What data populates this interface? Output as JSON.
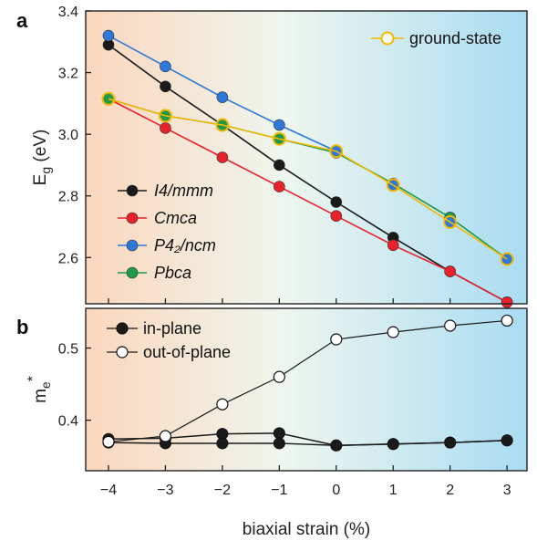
{
  "chart_data": [
    {
      "panel": "a",
      "type": "line",
      "ylabel_main": "E",
      "ylabel_sub": "g",
      "ylabel_unit": " (eV)",
      "ylim": [
        2.45,
        3.4
      ],
      "yticks": [
        2.6,
        2.8,
        3.0,
        3.2,
        3.4
      ],
      "ytick_labels": [
        "2.6",
        "2.8",
        "3.0",
        "3.2",
        "3.4"
      ],
      "x": [
        -4,
        -3,
        -2,
        -1,
        0,
        1,
        2,
        3
      ],
      "series": [
        {
          "name": "I4/mmm",
          "color": "#1a1a1a",
          "values": [
            3.29,
            3.155,
            3.03,
            2.9,
            2.78,
            2.665,
            2.555,
            2.455
          ]
        },
        {
          "name": "Cmca",
          "color": "#e8212b",
          "values": [
            3.115,
            3.02,
            2.925,
            2.83,
            2.735,
            2.64,
            2.555,
            2.455
          ]
        },
        {
          "name": "P4₂/ncm",
          "color": "#2e78d9",
          "values": [
            3.32,
            3.22,
            3.12,
            3.03,
            2.945,
            null,
            null,
            null
          ]
        },
        {
          "name": "Pbca",
          "color": "#1e9a4a",
          "values": [
            3.115,
            3.06,
            3.03,
            2.985,
            2.94,
            2.84,
            2.73,
            2.595
          ]
        },
        {
          "name": "ground-state",
          "color": "#f5b800",
          "values": [
            3.115,
            3.06,
            3.03,
            2.985,
            2.945,
            2.835,
            2.715,
            2.595
          ]
        }
      ],
      "extra_points": [
        {
          "series": "P4₂/ncm",
          "x": [
            1,
            2,
            3
          ],
          "values": [
            2.835,
            2.715,
            2.595
          ]
        }
      ],
      "legend": {
        "upper_right": [
          "ground-state"
        ],
        "lower_left": [
          "I4/mmm",
          "Cmca",
          "P4₂/ncm",
          "Pbca"
        ]
      }
    },
    {
      "panel": "b",
      "type": "line",
      "ylabel_main": "m",
      "ylabel_sub": "e",
      "ylabel_sup": "*",
      "ylim": [
        0.33,
        0.555
      ],
      "yticks": [
        0.4,
        0.5
      ],
      "ytick_labels": [
        "0.4",
        "0.5"
      ],
      "xlabel": "biaxial strain (%)",
      "x": [
        -4,
        -3,
        -2,
        -1,
        0,
        1,
        2,
        3
      ],
      "xtick_labels": [
        "−4",
        "−3",
        "−2",
        "−1",
        "0",
        "1",
        "2",
        "3"
      ],
      "series": [
        {
          "name": "in-plane",
          "fill": "#1a1a1a",
          "values_upper": [
            0.374,
            0.375,
            0.381,
            0.382,
            0.365,
            0.367,
            0.369,
            0.372
          ],
          "values_lower": [
            0.369,
            0.368,
            0.368,
            0.368,
            0.365,
            0.367,
            0.369,
            0.372
          ]
        },
        {
          "name": "out-of-plane",
          "fill": "#ffffff",
          "values": [
            0.37,
            0.378,
            0.422,
            0.46,
            0.512,
            0.522,
            0.531,
            0.538
          ]
        }
      ],
      "legend": [
        "in-plane",
        "out-of-plane"
      ]
    }
  ],
  "colors": {
    "gradient_left": "#fbd7bd",
    "gradient_mid": "#eef6ee",
    "gradient_right": "#a9dcf3"
  }
}
